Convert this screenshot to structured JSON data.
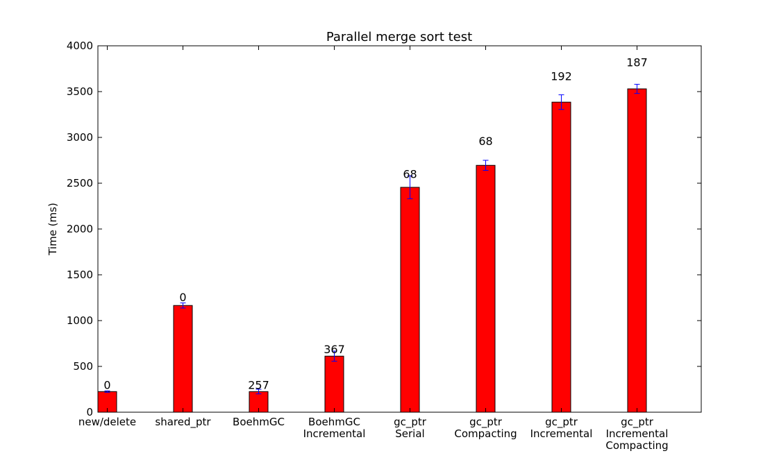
{
  "chart_data": {
    "type": "bar",
    "title": "Parallel merge sort test",
    "xlabel": "",
    "ylabel": "Time (ms)",
    "ylim": [
      0,
      4000
    ],
    "yticks": [
      0,
      500,
      1000,
      1500,
      2000,
      2500,
      3000,
      3500,
      4000
    ],
    "grid": false,
    "legend": "none",
    "bar_color": "#ff0000",
    "error_color": "#0000ff",
    "categories": [
      [
        "new/delete"
      ],
      [
        "shared_ptr"
      ],
      [
        "BoehmGC"
      ],
      [
        "BoehmGC",
        "Incremental"
      ],
      [
        "gc_ptr",
        "Serial"
      ],
      [
        "gc_ptr",
        "Compacting"
      ],
      [
        "gc_ptr",
        "Incremental"
      ],
      [
        "gc_ptr",
        "Incremental",
        "Compacting"
      ]
    ],
    "values": [
      225,
      1165,
      225,
      612,
      2455,
      2695,
      3385,
      3530
    ],
    "errors": [
      8,
      28,
      25,
      55,
      125,
      55,
      80,
      50
    ],
    "annotations": [
      "0",
      "0",
      "257",
      "367",
      "68",
      "68",
      "192",
      "187"
    ],
    "annotation_values": [
      225,
      1180,
      225,
      615,
      2525,
      2885,
      3595,
      3745
    ]
  }
}
